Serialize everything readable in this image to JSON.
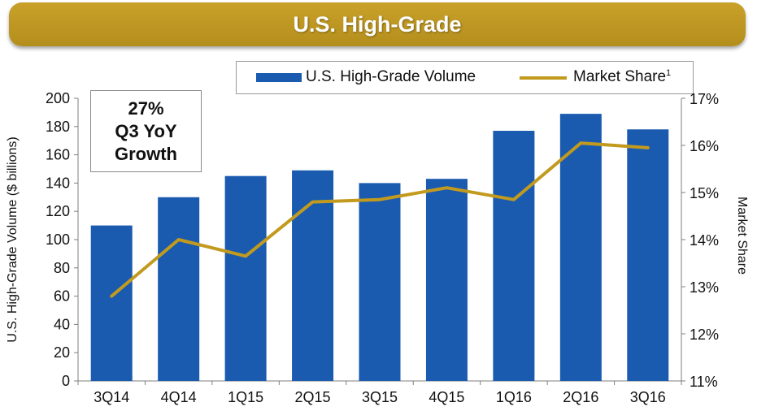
{
  "banner": {
    "title": "U.S. High-Grade"
  },
  "legend": {
    "bar_label": "U.S. High-Grade Volume",
    "line_label": "Market Share",
    "line_superscript": "1"
  },
  "callout": {
    "line1": "27%",
    "line2": "Q3 YoY",
    "line3": "Growth"
  },
  "colors": {
    "bar": "#1a5bb0",
    "line": "#c29a1e",
    "banner": "#c09a24"
  },
  "chart_data": {
    "type": "bar",
    "categories": [
      "3Q14",
      "4Q14",
      "1Q15",
      "2Q15",
      "3Q15",
      "4Q15",
      "1Q16",
      "2Q16",
      "3Q16"
    ],
    "series": [
      {
        "name": "U.S. High-Grade Volume",
        "type": "bar",
        "axis": "left",
        "values": [
          110,
          130,
          145,
          149,
          140,
          143,
          177,
          189,
          178
        ]
      },
      {
        "name": "Market Share",
        "type": "line",
        "axis": "right",
        "values": [
          12.8,
          14.0,
          13.65,
          14.8,
          14.85,
          15.1,
          14.85,
          16.05,
          15.95
        ]
      }
    ],
    "ylabel": "U.S. High-Grade Volume ($ billions)",
    "y2label": "Market Share",
    "ylim": [
      0,
      200
    ],
    "y_ticks": [
      "0",
      "20",
      "40",
      "60",
      "80",
      "100",
      "120",
      "140",
      "160",
      "180",
      "200"
    ],
    "y2lim": [
      11,
      17
    ],
    "y2_ticks": [
      "11%",
      "12%",
      "13%",
      "14%",
      "15%",
      "16%",
      "17%"
    ],
    "grid": false,
    "legend_position": "top"
  }
}
